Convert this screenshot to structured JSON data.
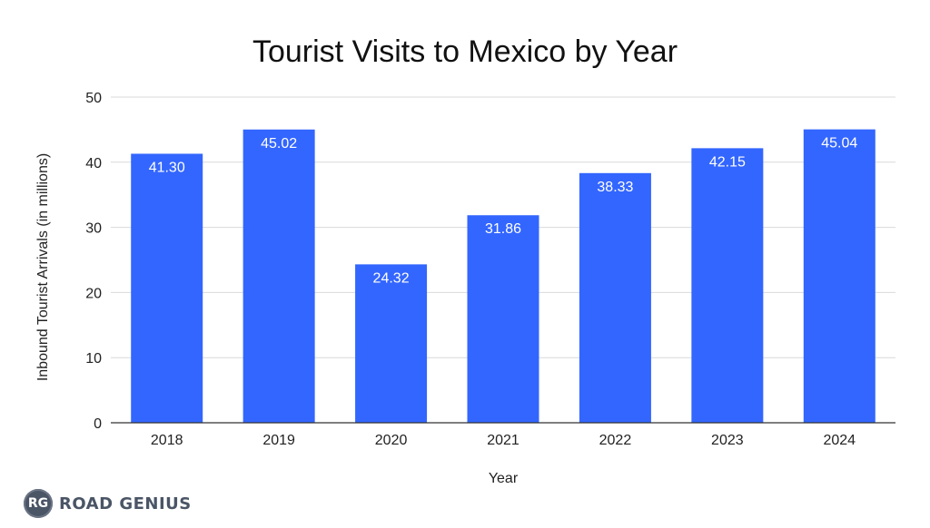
{
  "chart_data": {
    "type": "bar",
    "title": "Tourist Visits to Mexico by Year",
    "xlabel": "Year",
    "ylabel": "Inbound Tourist Arrivals (in millions)",
    "categories": [
      "2018",
      "2019",
      "2020",
      "2021",
      "2022",
      "2023",
      "2024"
    ],
    "values": [
      41.3,
      45.02,
      24.32,
      31.86,
      38.33,
      42.15,
      45.04
    ],
    "value_labels": [
      "41.30",
      "45.02",
      "24.32",
      "31.86",
      "38.33",
      "42.15",
      "45.04"
    ],
    "ylim": [
      0,
      50
    ],
    "yticks": [
      0,
      10,
      20,
      30,
      40,
      50
    ],
    "grid": true,
    "legend": "none",
    "bar_color": "#3366ff"
  },
  "branding": {
    "badge": "RG",
    "name": "ROAD GENIUS"
  }
}
